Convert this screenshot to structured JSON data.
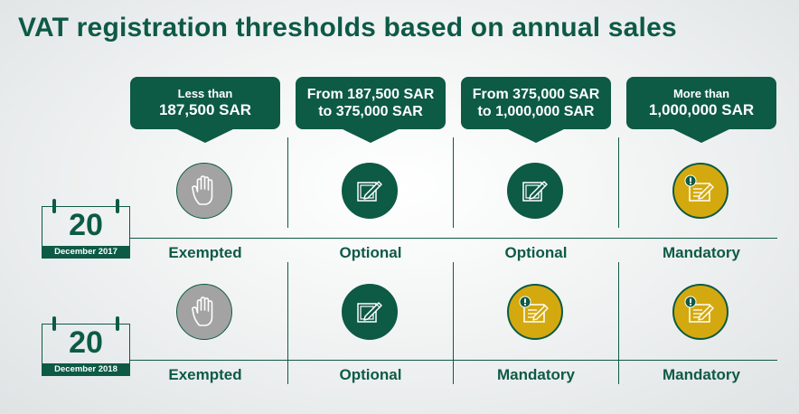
{
  "title": "VAT registration thresholds based on annual sales",
  "columns": [
    {
      "line1": "Less than",
      "line2": "187,500 SAR",
      "style": "small-big"
    },
    {
      "line1": "From 187,500 SAR",
      "line2": "to 375,000 SAR",
      "style": "mixed"
    },
    {
      "line1": "From 375,000 SAR",
      "line2": "to 1,000,000 SAR",
      "style": "mixed"
    },
    {
      "line1": "More than",
      "line2": "1,000,000 SAR",
      "style": "small-big"
    }
  ],
  "rows": [
    {
      "day": "20",
      "month": "December 2017",
      "statuses": [
        "Exempted",
        "Optional",
        "Optional",
        "Mandatory"
      ]
    },
    {
      "day": "20",
      "month": "December 2018",
      "statuses": [
        "Exempted",
        "Optional",
        "Mandatory",
        "Mandatory"
      ]
    }
  ],
  "icons": {
    "Exempted": "raised-hand-icon",
    "Optional": "pen-on-paper-icon",
    "Mandatory": "document-alert-icon"
  },
  "colors": {
    "green": "#0d5a45",
    "gray": "#a3a3a3",
    "gold": "#d4a90f"
  }
}
